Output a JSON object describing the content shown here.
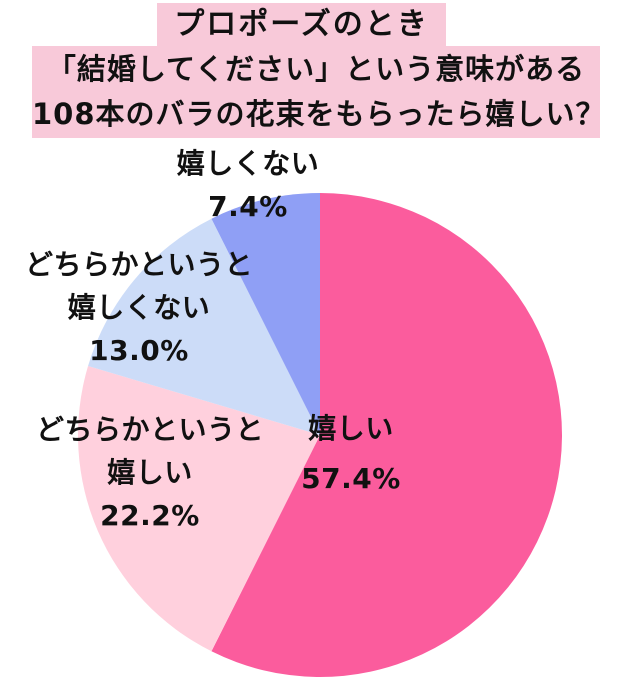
{
  "title": {
    "line1": "プロポーズのとき",
    "line2": "「結婚してください」という意味がある",
    "line3": "108本のバラの花束をもらったら嬉しい？",
    "bg_color": "#f8c9d9",
    "text_color": "#111111"
  },
  "chart_data": {
    "type": "pie",
    "title": "プロポーズのとき「結婚してください」という意味がある108本のバラの花束をもらったら嬉しい？",
    "start_angle_deg": 0,
    "direction": "clockwise",
    "total": 100,
    "legend_position": "none",
    "slices": [
      {
        "label": "嬉しい",
        "value": 57.4,
        "pct_label": "57.4%",
        "color": "#fb5c9d",
        "label_placement": "inside",
        "label_lines": [
          "嬉しい",
          "57.4%"
        ]
      },
      {
        "label": "どちらかというと嬉しい",
        "value": 22.2,
        "pct_label": "22.2%",
        "color": "#ffd0dd",
        "label_placement": "outside-left-lower",
        "label_lines": [
          "どちらかというと",
          "嬉しい",
          "22.2%"
        ]
      },
      {
        "label": "どちらかというと嬉しくない",
        "value": 13.0,
        "pct_label": "13.0%",
        "color": "#ccdcf8",
        "label_placement": "outside-left-upper",
        "label_lines": [
          "どちらかというと",
          "嬉しくない",
          "13.0%"
        ]
      },
      {
        "label": "嬉しくない",
        "value": 7.4,
        "pct_label": "7.4%",
        "color": "#8f9ff5",
        "label_placement": "outside-top",
        "label_lines": [
          "嬉しくない",
          "7.4%"
        ]
      }
    ]
  }
}
